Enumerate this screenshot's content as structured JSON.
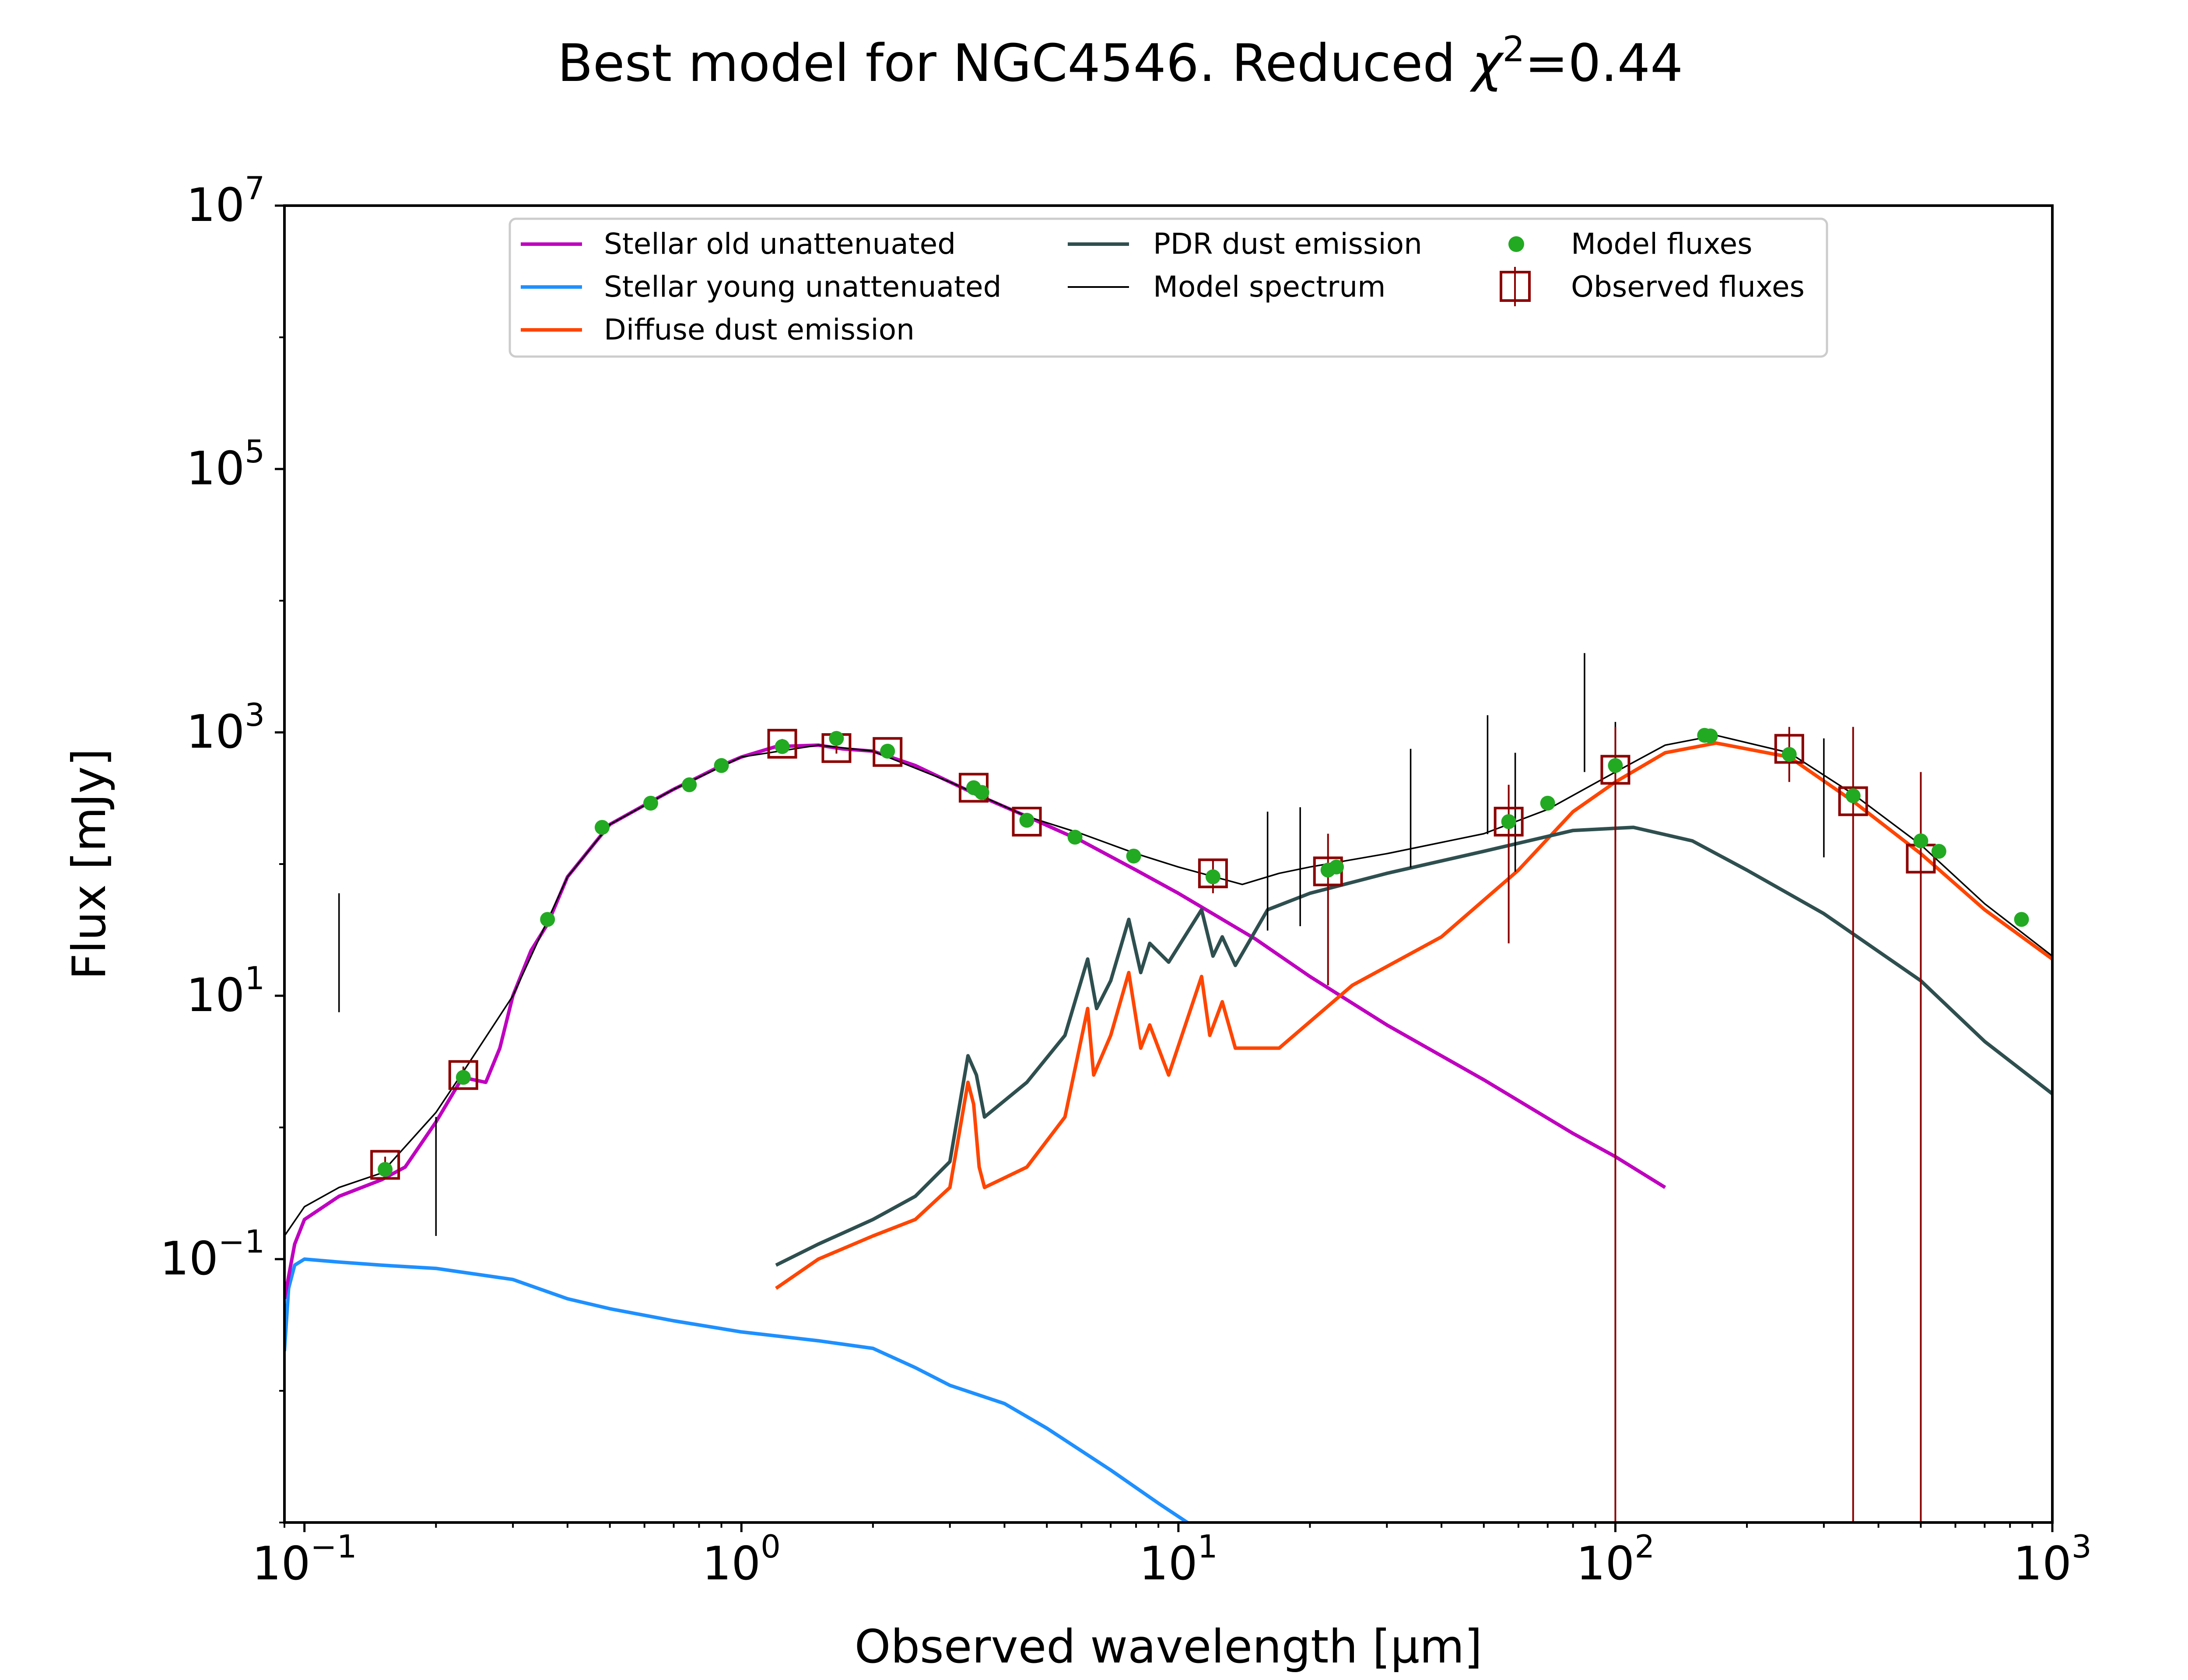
{
  "chart_data": {
    "type": "line",
    "title": {
      "main": "Best model for NGC4546. Reduced ",
      "chi": "χ",
      "sup": "2",
      "value": "=0.44"
    },
    "xlabel": "Observed wavelength [μm]",
    "ylabel": "Flux [mJy]",
    "xscale": "log",
    "yscale": "log",
    "xlim": [
      0.09,
      1000
    ],
    "ylim": [
      0.001,
      10000000
    ],
    "legend_position": "top-center",
    "x_ticks": [
      {
        "base": "10",
        "exp": "−1",
        "value": 0.1
      },
      {
        "base": "10",
        "exp": "0",
        "value": 1
      },
      {
        "base": "10",
        "exp": "1",
        "value": 10
      },
      {
        "base": "10",
        "exp": "2",
        "value": 100
      },
      {
        "base": "10",
        "exp": "3",
        "value": 1000
      }
    ],
    "y_ticks": [
      {
        "base": "10",
        "exp": "−1",
        "value": 0.1
      },
      {
        "base": "10",
        "exp": "1",
        "value": 10
      },
      {
        "base": "10",
        "exp": "3",
        "value": 1000
      },
      {
        "base": "10",
        "exp": "5",
        "value": 100000
      },
      {
        "base": "10",
        "exp": "7",
        "value": 10000000
      }
    ],
    "series": [
      {
        "name": "Stellar old unattenuated",
        "color": "#bf00bf",
        "kind": "line",
        "points": [
          [
            0.09,
            0.05
          ],
          [
            0.095,
            0.13
          ],
          [
            0.1,
            0.2
          ],
          [
            0.12,
            0.3
          ],
          [
            0.15,
            0.4
          ],
          [
            0.17,
            0.5
          ],
          [
            0.2,
            1.1
          ],
          [
            0.23,
            2.4
          ],
          [
            0.26,
            2.2
          ],
          [
            0.28,
            4
          ],
          [
            0.3,
            10
          ],
          [
            0.33,
            22
          ],
          [
            0.36,
            35
          ],
          [
            0.4,
            80
          ],
          [
            0.45,
            130
          ],
          [
            0.5,
            200
          ],
          [
            0.6,
            280
          ],
          [
            0.7,
            370
          ],
          [
            0.8,
            460
          ],
          [
            0.9,
            560
          ],
          [
            1.0,
            650
          ],
          [
            1.2,
            780
          ],
          [
            1.5,
            800
          ],
          [
            1.7,
            750
          ],
          [
            2.0,
            720
          ],
          [
            2.5,
            560
          ],
          [
            3.0,
            420
          ],
          [
            3.5,
            330
          ],
          [
            4.5,
            230
          ],
          [
            6,
            150
          ],
          [
            8,
            90
          ],
          [
            10,
            60
          ],
          [
            15,
            27
          ],
          [
            20,
            14
          ],
          [
            30,
            6
          ],
          [
            50,
            2.3
          ],
          [
            80,
            0.9
          ],
          [
            100,
            0.6
          ],
          [
            130,
            0.35
          ]
        ]
      },
      {
        "name": "Stellar young unattenuated",
        "color": "#1e90ff",
        "kind": "line",
        "points": [
          [
            0.09,
            0.02
          ],
          [
            0.092,
            0.06
          ],
          [
            0.095,
            0.09
          ],
          [
            0.1,
            0.1
          ],
          [
            0.12,
            0.095
          ],
          [
            0.15,
            0.09
          ],
          [
            0.2,
            0.085
          ],
          [
            0.3,
            0.07
          ],
          [
            0.4,
            0.05
          ],
          [
            0.5,
            0.042
          ],
          [
            0.7,
            0.034
          ],
          [
            1.0,
            0.028
          ],
          [
            1.5,
            0.024
          ],
          [
            2.0,
            0.021
          ],
          [
            2.5,
            0.015
          ],
          [
            3.0,
            0.011
          ],
          [
            4,
            0.008
          ],
          [
            5,
            0.0052
          ],
          [
            7,
            0.0025
          ],
          [
            9,
            0.0014
          ],
          [
            11,
            0.0009
          ]
        ]
      },
      {
        "name": "Diffuse dust emission",
        "color": "#ff4500",
        "kind": "line",
        "points": [
          [
            1.2,
            0.06
          ],
          [
            1.5,
            0.1
          ],
          [
            2,
            0.15
          ],
          [
            2.5,
            0.2
          ],
          [
            3.0,
            0.35
          ],
          [
            3.3,
            2.2
          ],
          [
            3.4,
            1.5
          ],
          [
            3.5,
            0.5
          ],
          [
            3.6,
            0.35
          ],
          [
            4.5,
            0.5
          ],
          [
            5.5,
            1.2
          ],
          [
            6.2,
            8
          ],
          [
            6.4,
            2.5
          ],
          [
            7,
            5
          ],
          [
            7.7,
            15
          ],
          [
            8.2,
            4
          ],
          [
            8.6,
            6
          ],
          [
            9.5,
            2.5
          ],
          [
            11.3,
            14
          ],
          [
            11.8,
            5
          ],
          [
            12.6,
            9
          ],
          [
            13.5,
            4
          ],
          [
            17,
            4
          ],
          [
            25,
            12
          ],
          [
            40,
            28
          ],
          [
            60,
            90
          ],
          [
            80,
            250
          ],
          [
            100,
            420
          ],
          [
            130,
            700
          ],
          [
            170,
            830
          ],
          [
            250,
            650
          ],
          [
            350,
            300
          ],
          [
            500,
            120
          ],
          [
            700,
            45
          ],
          [
            1000,
            19
          ]
        ]
      },
      {
        "name": "PDR dust emission",
        "color": "#2f4f4f",
        "kind": "line",
        "points": [
          [
            1.2,
            0.09
          ],
          [
            1.5,
            0.13
          ],
          [
            2,
            0.2
          ],
          [
            2.5,
            0.3
          ],
          [
            3.0,
            0.55
          ],
          [
            3.3,
            3.5
          ],
          [
            3.45,
            2.5
          ],
          [
            3.6,
            1.2
          ],
          [
            4.5,
            2.2
          ],
          [
            5.5,
            5
          ],
          [
            6.2,
            19
          ],
          [
            6.5,
            8
          ],
          [
            7,
            13
          ],
          [
            7.7,
            38
          ],
          [
            8.2,
            15
          ],
          [
            8.6,
            25
          ],
          [
            9.5,
            18
          ],
          [
            11.3,
            45
          ],
          [
            12,
            20
          ],
          [
            12.6,
            28
          ],
          [
            13.5,
            17
          ],
          [
            16,
            45
          ],
          [
            20,
            60
          ],
          [
            30,
            85
          ],
          [
            50,
            125
          ],
          [
            80,
            180
          ],
          [
            110,
            190
          ],
          [
            150,
            150
          ],
          [
            200,
            90
          ],
          [
            300,
            42
          ],
          [
            500,
            13
          ],
          [
            700,
            4.5
          ],
          [
            1000,
            1.8
          ]
        ]
      },
      {
        "name": "Model spectrum",
        "color": "#000000",
        "kind": "line",
        "points": [
          [
            0.09,
            0.15
          ],
          [
            0.1,
            0.25
          ],
          [
            0.12,
            0.35
          ],
          [
            0.15,
            0.45
          ],
          [
            0.2,
            1.3
          ],
          [
            0.23,
            2.6
          ],
          [
            0.3,
            10
          ],
          [
            0.4,
            80
          ],
          [
            0.5,
            200
          ],
          [
            0.7,
            370
          ],
          [
            1.0,
            650
          ],
          [
            1.5,
            800
          ],
          [
            2.0,
            720
          ],
          [
            3,
            420
          ],
          [
            4.5,
            230
          ],
          [
            6,
            170
          ],
          [
            8,
            120
          ],
          [
            10,
            95
          ],
          [
            14,
            70
          ],
          [
            17,
            85
          ],
          [
            20,
            95
          ],
          [
            30,
            120
          ],
          [
            50,
            170
          ],
          [
            70,
            260
          ],
          [
            100,
            500
          ],
          [
            130,
            800
          ],
          [
            170,
            950
          ],
          [
            250,
            700
          ],
          [
            350,
            340
          ],
          [
            500,
            140
          ],
          [
            700,
            50
          ],
          [
            1000,
            20
          ]
        ],
        "lines": [
          [
            0.12,
            60
          ],
          [
            0.2,
            1.2
          ],
          [
            16,
            250
          ],
          [
            19,
            270
          ],
          [
            34,
            750
          ],
          [
            51,
            1350
          ],
          [
            59,
            700
          ],
          [
            85,
            4000
          ],
          [
            100,
            1200
          ],
          [
            300,
            900
          ]
        ]
      },
      {
        "name": "Model fluxes",
        "color": "#22aa22",
        "kind": "scatter",
        "points": [
          [
            0.153,
            0.48
          ],
          [
            0.231,
            2.4
          ],
          [
            0.36,
            38
          ],
          [
            0.48,
            190
          ],
          [
            0.62,
            290
          ],
          [
            0.76,
            400
          ],
          [
            0.9,
            560
          ],
          [
            1.24,
            780
          ],
          [
            1.65,
            900
          ],
          [
            2.16,
            720
          ],
          [
            3.4,
            380
          ],
          [
            3.55,
            350
          ],
          [
            4.5,
            215
          ],
          [
            5.8,
            160
          ],
          [
            7.9,
            115
          ],
          [
            12,
            80
          ],
          [
            22,
            90
          ],
          [
            23,
            95
          ],
          [
            57,
            210
          ],
          [
            70,
            290
          ],
          [
            100,
            560
          ],
          [
            160,
            950
          ],
          [
            165,
            940
          ],
          [
            250,
            680
          ],
          [
            350,
            330
          ],
          [
            500,
            150
          ],
          [
            550,
            125
          ],
          [
            850,
            38
          ]
        ]
      },
      {
        "name": "Observed fluxes",
        "color": "#8b0000",
        "kind": "errorbar",
        "points": [
          {
            "x": 0.153,
            "y": 0.52,
            "lo": 0.45,
            "hi": 0.6
          },
          {
            "x": 0.231,
            "y": 2.5,
            "lo": 2.2,
            "hi": 2.9
          },
          {
            "x": 1.24,
            "y": 820,
            "lo": 760,
            "hi": 890
          },
          {
            "x": 1.65,
            "y": 760,
            "lo": 690,
            "hi": 840
          },
          {
            "x": 2.16,
            "y": 710,
            "lo": 650,
            "hi": 780
          },
          {
            "x": 3.4,
            "y": 380,
            "lo": 350,
            "hi": 410
          },
          {
            "x": 4.5,
            "y": 210,
            "lo": 190,
            "hi": 230
          },
          {
            "x": 12,
            "y": 85,
            "lo": 60,
            "hi": 110
          },
          {
            "x": 22,
            "y": 88,
            "lo": 12,
            "hi": 170
          },
          {
            "x": 57,
            "y": 210,
            "lo": 25,
            "hi": 400
          },
          {
            "x": 100,
            "y": 520,
            "lo": 0.001,
            "hi": 1100
          },
          {
            "x": 250,
            "y": 750,
            "lo": 420,
            "hi": 1100
          },
          {
            "x": 350,
            "y": 300,
            "lo": 0.001,
            "hi": 1100
          },
          {
            "x": 500,
            "y": 110,
            "lo": 0.001,
            "hi": 500
          }
        ]
      }
    ]
  }
}
